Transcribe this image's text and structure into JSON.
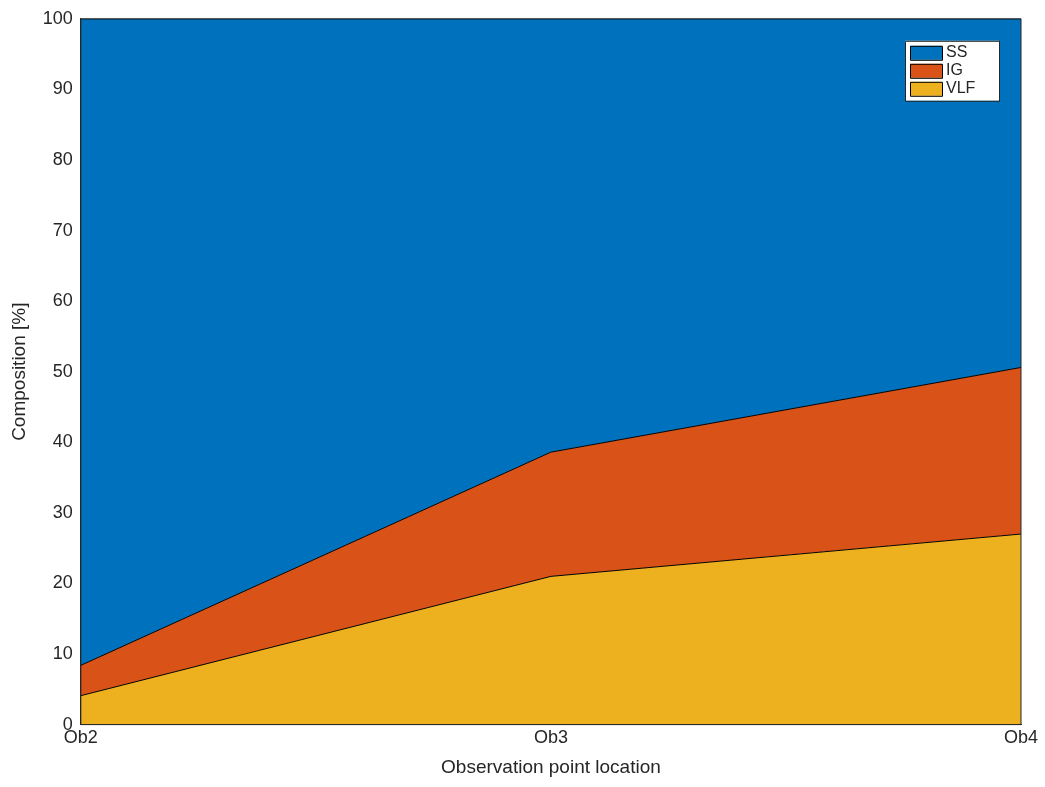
{
  "chart_data": {
    "type": "area",
    "stacked": true,
    "xlabel": "Observation point location",
    "ylabel": "Composition [%]",
    "categories": [
      "Ob2",
      "Ob3",
      "Ob4"
    ],
    "series": [
      {
        "name": "VLF",
        "color": "#edb120",
        "values": [
          4.1,
          21.0,
          27.0
        ]
      },
      {
        "name": "IG",
        "color": "#d95319",
        "values": [
          4.3,
          17.6,
          23.6
        ]
      },
      {
        "name": "SS",
        "color": "#0072bd",
        "values": [
          91.6,
          61.4,
          49.4
        ]
      }
    ],
    "ylim": [
      0,
      100
    ],
    "yticks": [
      0,
      10,
      20,
      30,
      40,
      50,
      60,
      70,
      80,
      90,
      100
    ],
    "grid": false,
    "legend": "top right"
  }
}
